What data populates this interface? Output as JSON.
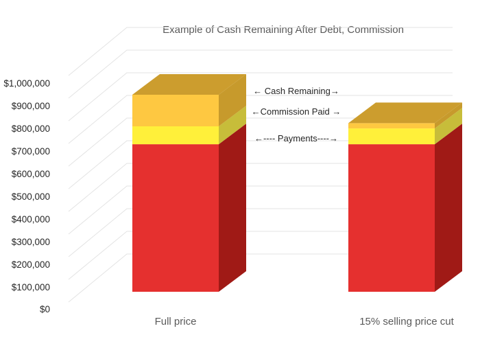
{
  "chart_data": {
    "type": "bar",
    "stacked": true,
    "three_d": true,
    "title": "Example of Cash Remaining After Debt, Commission",
    "xlabel": "",
    "ylabel": "",
    "ylim": [
      0,
      1000000
    ],
    "y_ticks": [
      "$0",
      "$100,000",
      "$200,000",
      "$300,000",
      "$400,000",
      "$500,000",
      "$600,000",
      "$700,000",
      "$800,000",
      "$900,000",
      "$1,000,000"
    ],
    "categories": [
      "Full price",
      "15% selling price cut"
    ],
    "series": [
      {
        "values": [
          700000,
          700000
        ],
        "color": "#e5302f",
        "side_color": "#a01a16"
      },
      {
        "values": [
          85000,
          75000
        ],
        "color": "#fff03a",
        "side_color": "#c7bd3a"
      },
      {
        "values": [
          150000,
          25000
        ],
        "color": "#fec841",
        "side_color": "#c79a2c"
      }
    ],
    "top_color": "#cc9d2e",
    "annotations": [
      {
        "text": "← Cash Remaining→"
      },
      {
        "text": "←Commission Paid →"
      },
      {
        "text": "←---- Payments----→"
      }
    ],
    "grid": true,
    "legend": "none"
  }
}
